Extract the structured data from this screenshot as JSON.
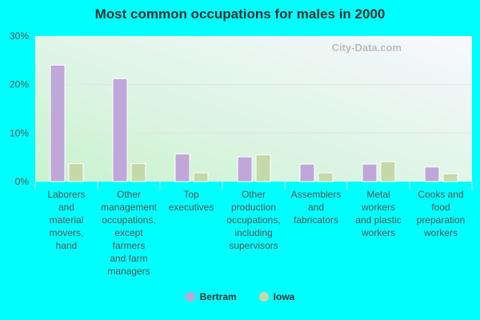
{
  "chart_data": {
    "type": "bar",
    "title": "Most common occupations for males in 2000",
    "categories": [
      [
        "Laborers",
        "and",
        "material",
        "movers,",
        "hand"
      ],
      [
        "Other",
        "management",
        "occupations,",
        "except",
        "farmers",
        "and farm",
        "managers"
      ],
      [
        "Top",
        "executives"
      ],
      [
        "Other",
        "production",
        "occupations,",
        "including",
        "supervisors"
      ],
      [
        "Assemblers",
        "and",
        "fabricators"
      ],
      [
        "Metal",
        "workers",
        "and plastic",
        "workers"
      ],
      [
        "Cooks and",
        "food",
        "preparation",
        "workers"
      ]
    ],
    "series": [
      {
        "name": "Bertram",
        "color": "#bfa8d8",
        "values": [
          24.0,
          21.2,
          5.7,
          5.1,
          3.6,
          3.6,
          3.0
        ]
      },
      {
        "name": "Iowa",
        "color": "#c5d9a8",
        "values": [
          3.7,
          3.7,
          1.8,
          5.5,
          1.8,
          4.1,
          1.6
        ]
      }
    ],
    "yticks": [
      "0%",
      "10%",
      "20%",
      "30%"
    ],
    "ylim": [
      0,
      30
    ],
    "grid": true,
    "legend": "bottom",
    "watermark": "City-Data.com"
  }
}
